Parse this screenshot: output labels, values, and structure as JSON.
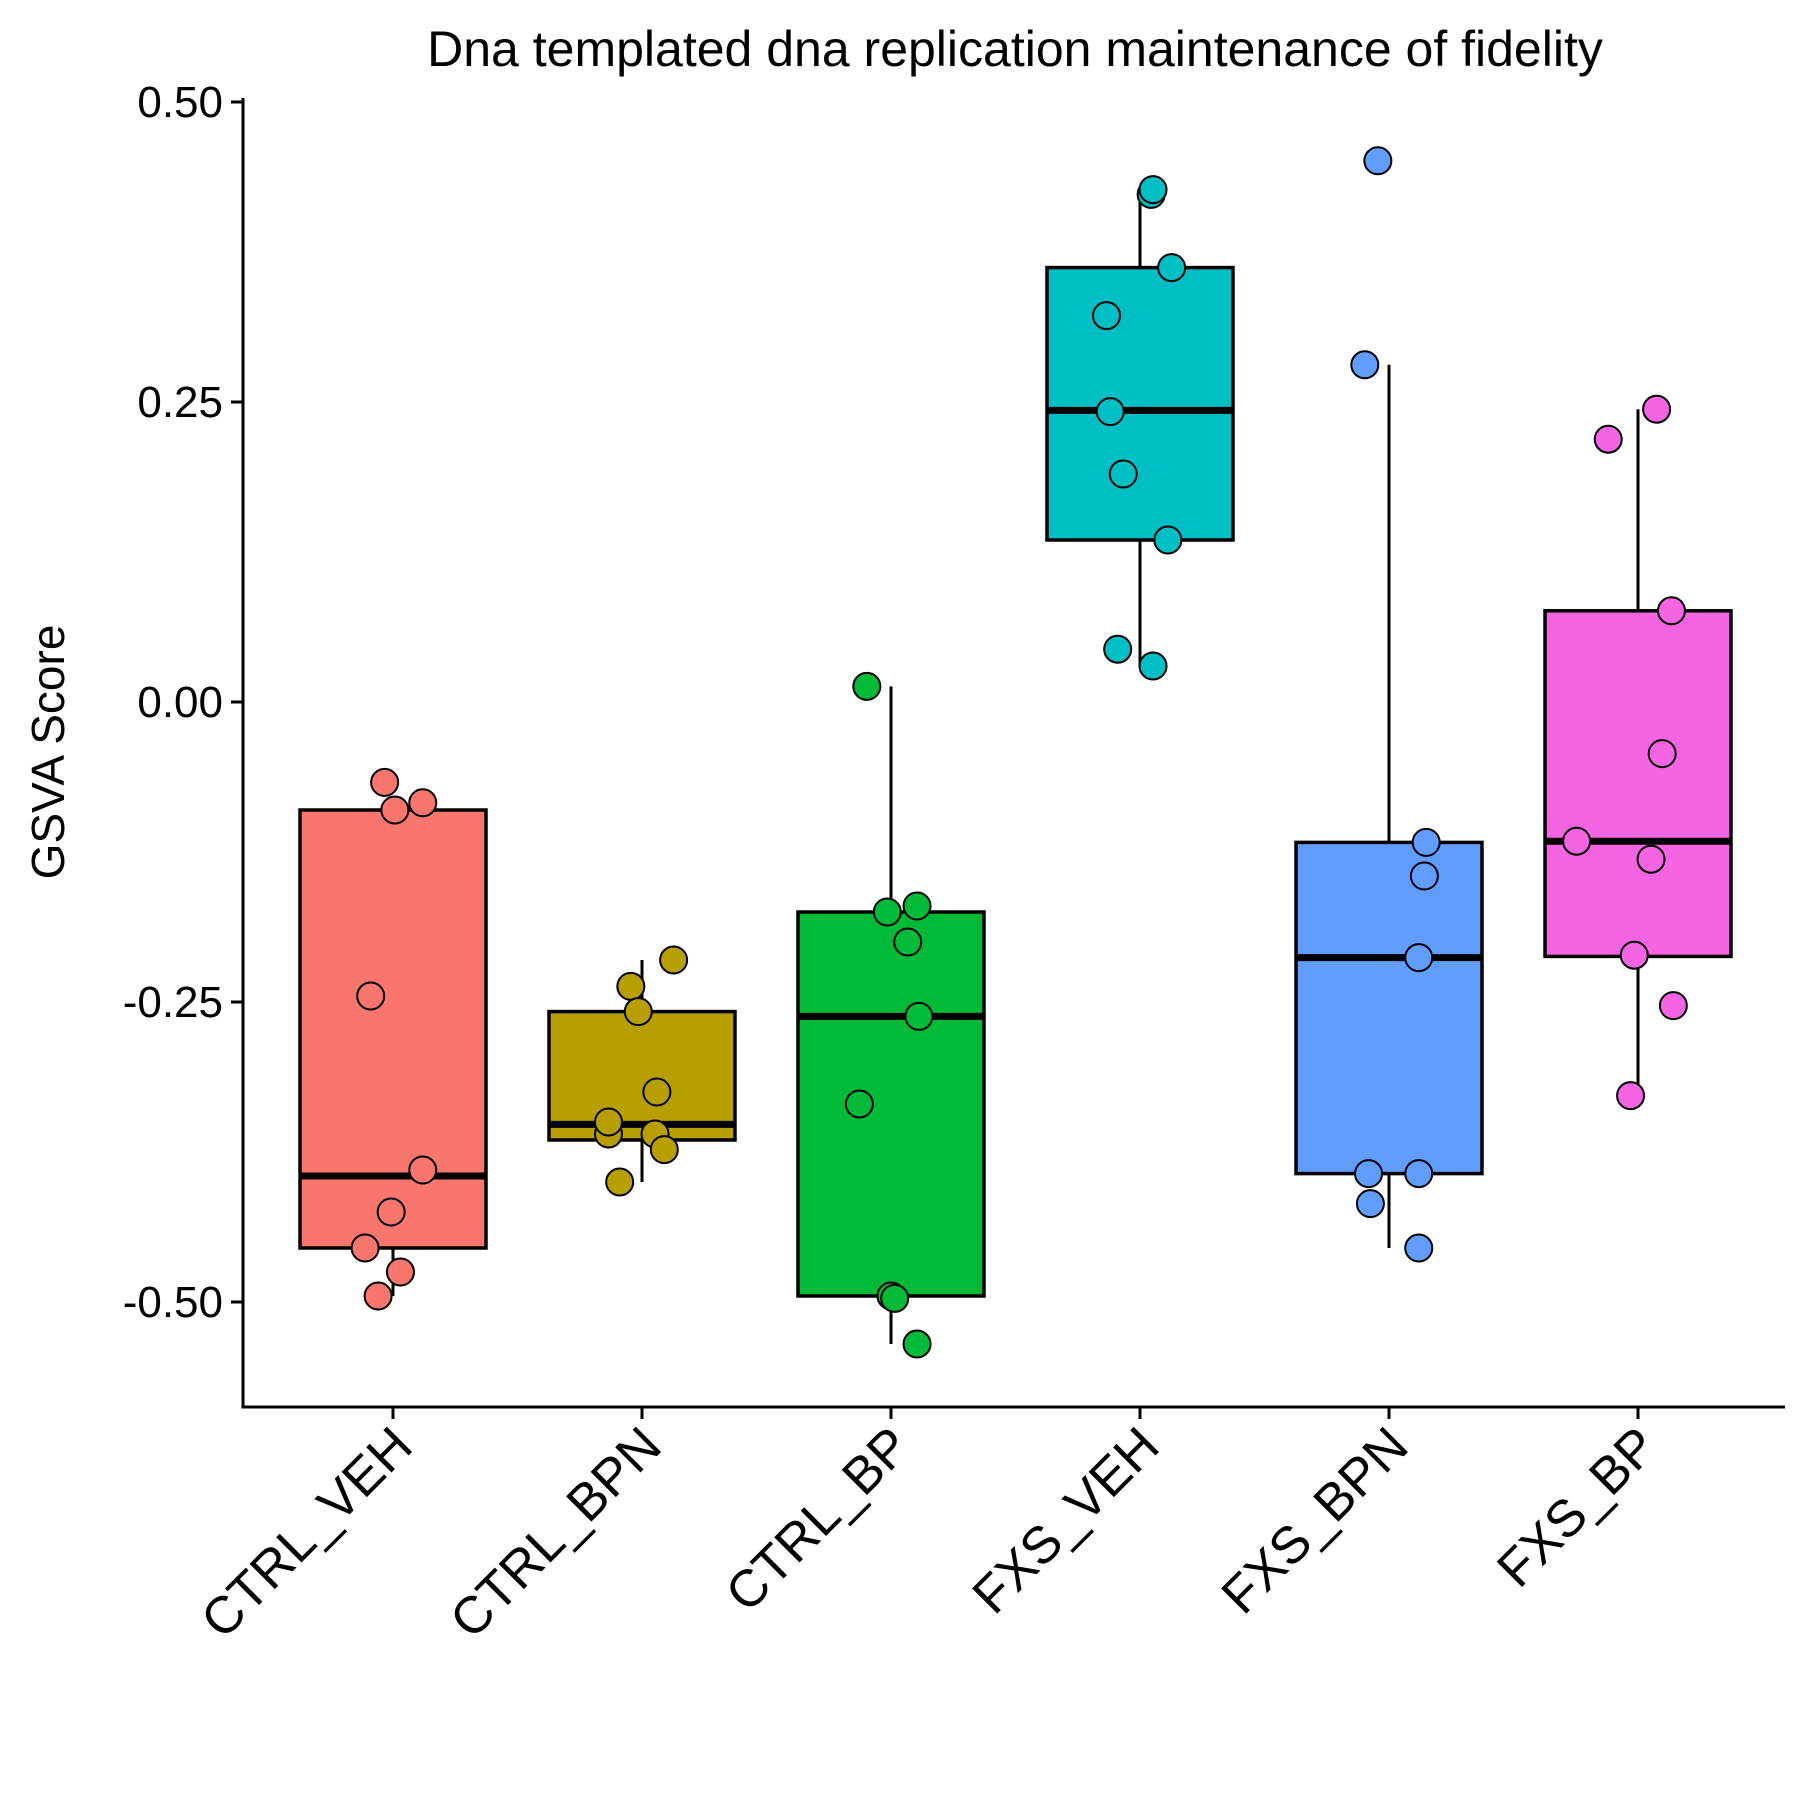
{
  "chart_data": {
    "type": "box",
    "title": "Dna templated dna replication maintenance of fidelity",
    "xlabel": "",
    "ylabel": "GSVA Score",
    "ylim": [
      -0.585,
      0.5
    ],
    "yticks": [
      0.5,
      0.25,
      0.0,
      -0.25,
      -0.5
    ],
    "ytick_labels": [
      "0.50",
      "0.25",
      "0.00",
      "-0.25",
      "-0.50"
    ],
    "grid": false,
    "legend": "none",
    "categories": [
      "CTRL_VEH",
      "CTRL_BPN",
      "CTRL_BP",
      "FXS_VEH",
      "FXS_BPN",
      "FXS_BP"
    ],
    "colors": [
      "#F8766D",
      "#B79F00",
      "#00BA38",
      "#00BFC4",
      "#619CFF",
      "#F564E3"
    ],
    "boxes": [
      {
        "name": "CTRL_VEH",
        "whisker_low": -0.495,
        "q1": -0.455,
        "median": -0.395,
        "q3": -0.09,
        "whisker_high": -0.09
      },
      {
        "name": "CTRL_BPN",
        "whisker_low": -0.4,
        "q1": -0.365,
        "median": -0.352,
        "q3": -0.258,
        "whisker_high": -0.215
      },
      {
        "name": "CTRL_BP",
        "whisker_low": -0.535,
        "q1": -0.495,
        "median": -0.262,
        "q3": -0.175,
        "whisker_high": 0.013
      },
      {
        "name": "FXS_VEH",
        "whisker_low": 0.029,
        "q1": 0.135,
        "median": 0.243,
        "q3": 0.362,
        "whisker_high": 0.424
      },
      {
        "name": "FXS_BPN",
        "whisker_low": -0.455,
        "q1": -0.393,
        "median": -0.213,
        "q3": -0.117,
        "whisker_high": 0.281
      },
      {
        "name": "FXS_BP",
        "whisker_low": -0.328,
        "q1": -0.212,
        "median": -0.116,
        "q3": 0.076,
        "whisker_high": 0.244
      }
    ],
    "points": [
      [
        [
          -0.045,
          -0.067
        ],
        [
          0.01,
          -0.09
        ],
        [
          0.16,
          -0.084
        ],
        [
          -0.12,
          -0.245
        ],
        [
          0.16,
          -0.39
        ],
        [
          -0.01,
          -0.425
        ],
        [
          -0.15,
          -0.455
        ],
        [
          0.04,
          -0.475
        ],
        [
          -0.08,
          -0.495
        ]
      ],
      [
        [
          -0.06,
          -0.237
        ],
        [
          0.17,
          -0.215
        ],
        [
          -0.02,
          -0.258
        ],
        [
          0.08,
          -0.325
        ],
        [
          -0.18,
          -0.36
        ],
        [
          -0.18,
          -0.35
        ],
        [
          0.07,
          -0.36
        ],
        [
          0.12,
          -0.373
        ],
        [
          -0.12,
          -0.4
        ]
      ],
      [
        [
          -0.13,
          0.013
        ],
        [
          -0.02,
          -0.175
        ],
        [
          0.14,
          -0.17
        ],
        [
          0.09,
          -0.2
        ],
        [
          0.15,
          -0.262
        ],
        [
          -0.17,
          -0.335
        ],
        [
          0.0,
          -0.495
        ],
        [
          0.02,
          -0.497
        ],
        [
          0.14,
          -0.535
        ]
      ],
      [
        [
          0.06,
          0.423
        ],
        [
          0.07,
          0.427
        ],
        [
          0.17,
          0.362
        ],
        [
          -0.18,
          0.322
        ],
        [
          -0.16,
          0.242
        ],
        [
          -0.09,
          0.19
        ],
        [
          0.15,
          0.135
        ],
        [
          -0.12,
          0.044
        ],
        [
          0.07,
          0.03
        ]
      ],
      [
        [
          -0.06,
          0.451
        ],
        [
          -0.13,
          0.281
        ],
        [
          0.2,
          -0.117
        ],
        [
          0.19,
          -0.145
        ],
        [
          0.16,
          -0.213
        ],
        [
          -0.11,
          -0.393
        ],
        [
          0.16,
          -0.393
        ],
        [
          -0.1,
          -0.418
        ],
        [
          0.16,
          -0.455
        ]
      ],
      [
        [
          0.1,
          0.244
        ],
        [
          -0.16,
          0.219
        ],
        [
          0.18,
          0.076
        ],
        [
          0.13,
          -0.043
        ],
        [
          -0.33,
          -0.116
        ],
        [
          0.07,
          -0.131
        ],
        [
          -0.02,
          -0.211
        ],
        [
          0.19,
          -0.253
        ],
        [
          -0.04,
          -0.328
        ]
      ]
    ]
  }
}
